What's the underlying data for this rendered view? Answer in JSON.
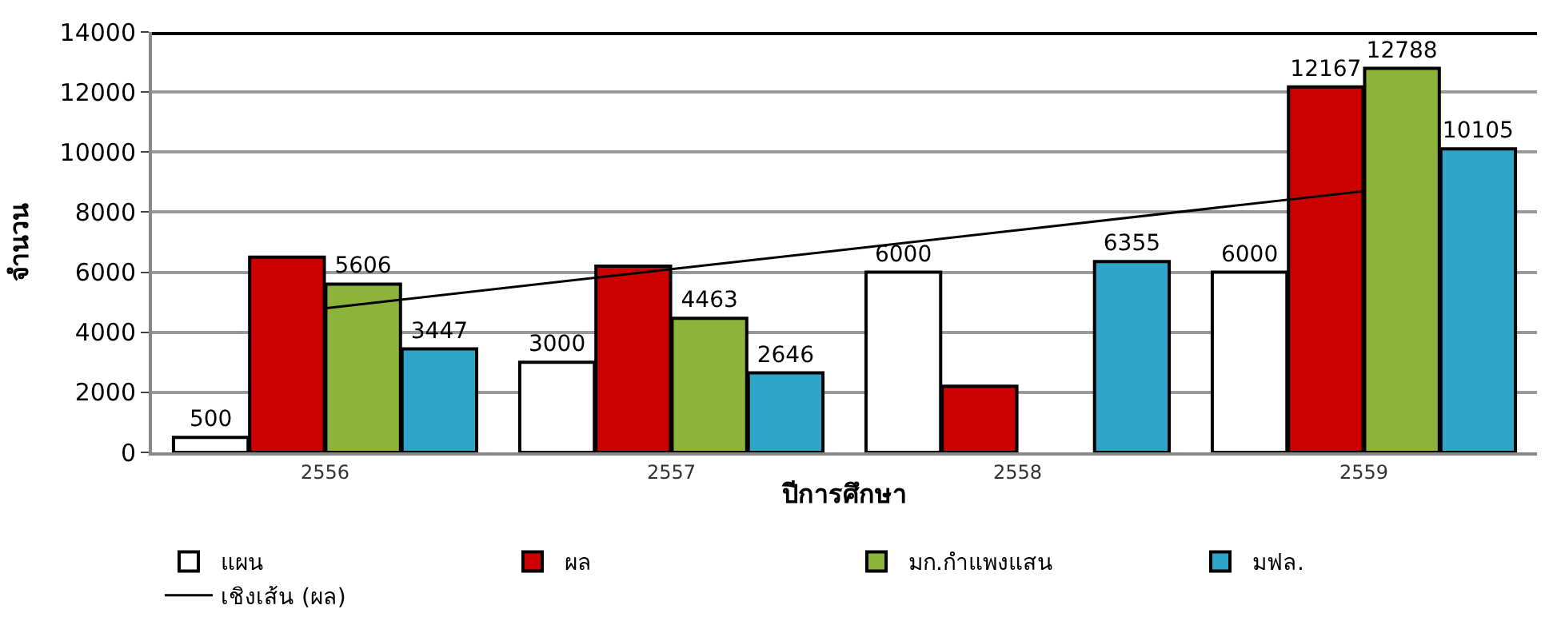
{
  "chart_data": {
    "type": "bar",
    "xlabel": "ปีการศึกษา",
    "ylabel": "จำนวน",
    "categories": [
      "2556",
      "2557",
      "2558",
      "2559"
    ],
    "series": [
      {
        "name": "แผน",
        "color": "#ffffff",
        "values": [
          500,
          3000,
          6000,
          6000
        ],
        "value_labels": [
          "500",
          "3000",
          "6000",
          "6000"
        ]
      },
      {
        "name": "ผล",
        "color": "#cc0000",
        "values": [
          6500,
          6200,
          2200,
          12167
        ],
        "value_labels": [
          null,
          null,
          null,
          "12167"
        ]
      },
      {
        "name": "มก.กำแพงแสน",
        "color": "#8db33a",
        "values": [
          5606,
          4463,
          null,
          12788
        ],
        "value_labels": [
          "5606",
          "4463",
          null,
          "12788"
        ]
      },
      {
        "name": "มฟล.",
        "color": "#31a5c7",
        "values": [
          3447,
          2646,
          6355,
          10105
        ],
        "value_labels": [
          "3447",
          "2646",
          "6355",
          "10105"
        ]
      },
      {
        "name": "เชิงเส้น (ผล)",
        "type": "line",
        "color": "#000000",
        "values": [
          4800,
          6100,
          7400,
          8700
        ]
      }
    ],
    "ylim": [
      0,
      14000
    ],
    "yticks": [
      0,
      2000,
      4000,
      6000,
      8000,
      10000,
      12000,
      14000
    ],
    "grid": "y",
    "legend": "bottom",
    "marker": "none",
    "line_style": "solid"
  }
}
